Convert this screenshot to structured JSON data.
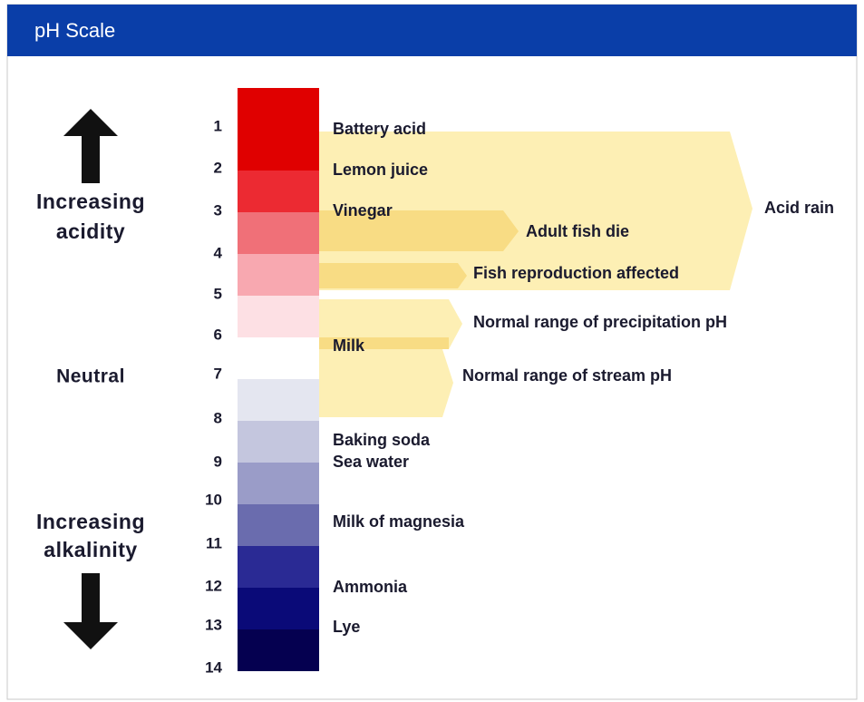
{
  "header": {
    "title": "pH Scale"
  },
  "side_labels": {
    "acidity": [
      "Increasing",
      "acidity"
    ],
    "neutral": "Neutral",
    "alkalinity": [
      "Increasing",
      "alkalinity"
    ]
  },
  "scale": [
    1,
    2,
    3,
    4,
    5,
    6,
    7,
    8,
    9,
    10,
    11,
    12,
    13,
    14
  ],
  "substances": [
    "Battery acid",
    "Lemon juice",
    "Vinegar",
    "Milk",
    "Baking soda",
    "Sea water",
    "Milk of magnesia",
    "Ammonia",
    "Lye"
  ],
  "ranges": [
    "Acid rain",
    "Adult fish die",
    "Fish reproduction affected",
    "Normal range of precipitation pH",
    "Normal range of stream pH"
  ]
}
